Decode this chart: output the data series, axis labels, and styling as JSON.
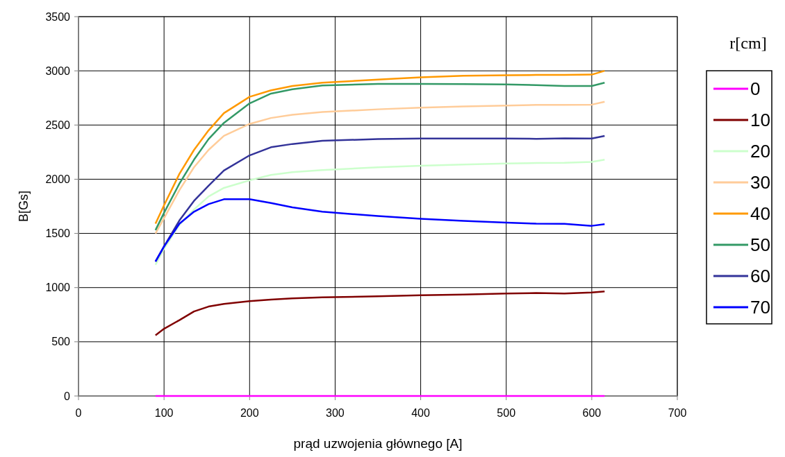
{
  "chart_data": {
    "type": "line",
    "xlabel": "prąd uzwojenia głównego [A]",
    "ylabel": "B[Gs]",
    "legend_title": "r[cm]",
    "x": [
      90,
      100,
      118,
      135,
      152,
      170,
      200,
      225,
      250,
      285,
      350,
      400,
      450,
      500,
      535,
      568,
      600,
      615
    ],
    "series": [
      {
        "name": "0",
        "color": "#ff00ff",
        "values": [
          0,
          0,
          0,
          0,
          0,
          0,
          0,
          0,
          0,
          0,
          0,
          0,
          0,
          0,
          0,
          0,
          0,
          0
        ]
      },
      {
        "name": "10",
        "color": "#800000",
        "values": [
          560,
          620,
          700,
          780,
          825,
          850,
          875,
          890,
          900,
          910,
          920,
          930,
          935,
          945,
          950,
          945,
          955,
          965
        ]
      },
      {
        "name": "20",
        "color": "#ccffcc",
        "values": [
          1210,
          1360,
          1580,
          1720,
          1840,
          1920,
          1990,
          2040,
          2065,
          2085,
          2110,
          2125,
          2135,
          2145,
          2150,
          2152,
          2160,
          2180
        ]
      },
      {
        "name": "30",
        "color": "#ffcc99",
        "values": [
          1500,
          1640,
          1900,
          2110,
          2270,
          2400,
          2510,
          2565,
          2595,
          2620,
          2645,
          2660,
          2672,
          2680,
          2685,
          2685,
          2688,
          2715
        ]
      },
      {
        "name": "40",
        "color": "#ff9900",
        "values": [
          1590,
          1760,
          2050,
          2270,
          2450,
          2610,
          2760,
          2820,
          2860,
          2890,
          2920,
          2940,
          2955,
          2960,
          2962,
          2962,
          2965,
          3000
        ]
      },
      {
        "name": "50",
        "color": "#339966",
        "values": [
          1530,
          1690,
          1960,
          2180,
          2370,
          2520,
          2700,
          2790,
          2830,
          2865,
          2880,
          2880,
          2878,
          2875,
          2868,
          2860,
          2860,
          2890
        ]
      },
      {
        "name": "60",
        "color": "#333399",
        "values": [
          1240,
          1380,
          1620,
          1800,
          1940,
          2080,
          2220,
          2295,
          2325,
          2355,
          2370,
          2375,
          2375,
          2375,
          2373,
          2377,
          2375,
          2400
        ]
      },
      {
        "name": "70",
        "color": "#0000ff",
        "values": [
          1240,
          1380,
          1590,
          1700,
          1770,
          1815,
          1815,
          1780,
          1740,
          1700,
          1660,
          1635,
          1615,
          1600,
          1590,
          1588,
          1570,
          1585
        ]
      }
    ],
    "xlim": [
      0,
      700
    ],
    "xticks": [
      0,
      100,
      200,
      300,
      400,
      500,
      600,
      700
    ],
    "ylim": [
      0,
      3500
    ],
    "yticks": [
      0,
      500,
      1000,
      1500,
      2000,
      2500,
      3000,
      3500
    ],
    "grid": true,
    "legend": "right",
    "line_style": "solid"
  }
}
